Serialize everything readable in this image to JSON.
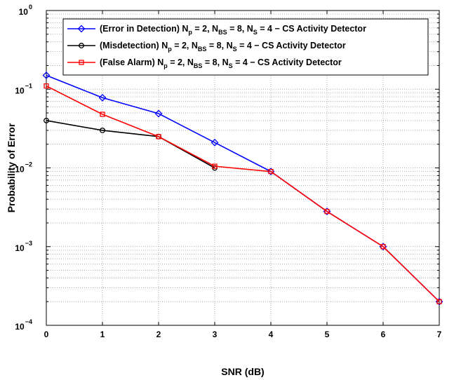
{
  "chart_data": {
    "type": "line",
    "xlabel": "SNR (dB)",
    "ylabel": "Probability of Error",
    "xlim": [
      0,
      7
    ],
    "ylim": [
      0.0001,
      1
    ],
    "yscale": "log",
    "grid": true,
    "legend_position": "top-right",
    "x_ticks": [
      "0",
      "1",
      "2",
      "3",
      "4",
      "5",
      "6",
      "7"
    ],
    "y_ticks": [
      {
        "value": 1,
        "base": "10",
        "exp": "0"
      },
      {
        "value": 0.1,
        "base": "10",
        "exp": "−1"
      },
      {
        "value": 0.01,
        "base": "10",
        "exp": "−2"
      },
      {
        "value": 0.001,
        "base": "10",
        "exp": "−3"
      },
      {
        "value": 0.0001,
        "base": "10",
        "exp": "−4"
      }
    ],
    "series": [
      {
        "id": "error",
        "color": "#0000ff",
        "marker": "diamond",
        "legend": {
          "prefix": "(Error in Detection) N",
          "s1": "p",
          "mid1": " = 2, N",
          "s2": "BS",
          "mid2": " = 8, N",
          "s3": "S",
          "suffix": " = 4 − CS Activity Detector"
        },
        "x": [
          0,
          1,
          2,
          3,
          4,
          5,
          6,
          7
        ],
        "y": [
          0.15,
          0.078,
          0.049,
          0.021,
          0.009,
          0.0028,
          0.001,
          0.0002
        ]
      },
      {
        "id": "misdetection",
        "color": "#000000",
        "marker": "circle",
        "legend": {
          "prefix": "(Misdetection) N",
          "s1": "p",
          "mid1": " = 2, N",
          "s2": "BS",
          "mid2": " = 8, N",
          "s3": "S",
          "suffix": " = 4 − CS Activity Detector"
        },
        "x": [
          0,
          1,
          2,
          3
        ],
        "y": [
          0.04,
          0.03,
          0.025,
          0.01
        ]
      },
      {
        "id": "false_alarm",
        "color": "#ff0000",
        "marker": "square",
        "legend": {
          "prefix": "(False Alarm) N",
          "s1": "p",
          "mid1": " = 2, N",
          "s2": "BS",
          "mid2": " = 8, N",
          "s3": "S",
          "suffix": " = 4 − CS Activity Detector"
        },
        "x": [
          0,
          1,
          2,
          3,
          4,
          5,
          6,
          7
        ],
        "y": [
          0.11,
          0.048,
          0.025,
          0.0105,
          0.009,
          0.0028,
          0.001,
          0.0002
        ]
      }
    ]
  }
}
